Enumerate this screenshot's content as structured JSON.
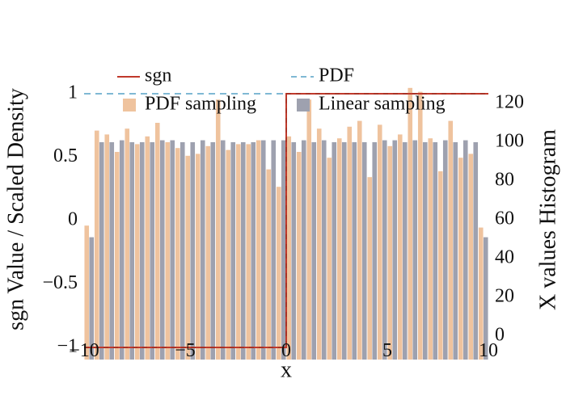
{
  "chart_data": {
    "type": "bar",
    "title": "",
    "xlabel": "x",
    "ylabel_left": "sgn Value / Scaled Density",
    "ylabel_right": "X values Histogram",
    "xlim": [
      -10,
      10
    ],
    "ylim_left": [
      -1.1,
      1.05
    ],
    "ylim_right": [
      0,
      128
    ],
    "xticks": [
      {
        "value": -10,
        "label": "−10"
      },
      {
        "value": -5,
        "label": "−5"
      },
      {
        "value": 0,
        "label": "0"
      },
      {
        "value": 5,
        "label": "5"
      },
      {
        "value": 10,
        "label": "10"
      }
    ],
    "yticks_left": [
      {
        "value": -1,
        "label": "−1"
      },
      {
        "value": -0.5,
        "label": "−0.5"
      },
      {
        "value": 0,
        "label": "0"
      },
      {
        "value": 0.5,
        "label": "0.5"
      },
      {
        "value": 1,
        "label": "1"
      }
    ],
    "yticks_right": [
      {
        "value": 0,
        "label": "0"
      },
      {
        "value": 20,
        "label": "20"
      },
      {
        "value": 40,
        "label": "40"
      },
      {
        "value": 60,
        "label": "60"
      },
      {
        "value": 80,
        "label": "80"
      },
      {
        "value": 100,
        "label": "100"
      },
      {
        "value": 120,
        "label": "120"
      }
    ],
    "grid": false,
    "legend": {
      "placement": "top",
      "entries": [
        {
          "label": "sgn",
          "kind": "line",
          "color": "#c0392b",
          "dash": "solid"
        },
        {
          "label": "PDF",
          "kind": "line",
          "color": "#7fb8d4",
          "dash": "dashed"
        },
        {
          "label": "PDF sampling",
          "kind": "bar",
          "color": "#efc39e"
        },
        {
          "label": "Linear sampling",
          "kind": "bar",
          "color": "#9ea1af"
        }
      ]
    },
    "bin_centers": [
      -9.75,
      -9.25,
      -8.75,
      -8.25,
      -7.75,
      -7.25,
      -6.75,
      -6.25,
      -5.75,
      -5.25,
      -4.75,
      -4.25,
      -3.75,
      -3.25,
      -2.75,
      -2.25,
      -1.75,
      -1.25,
      -0.75,
      -0.25,
      0.25,
      0.75,
      1.25,
      1.75,
      2.25,
      2.75,
      3.25,
      3.75,
      4.25,
      4.75,
      5.25,
      5.75,
      6.25,
      6.75,
      7.25,
      7.75,
      8.25,
      8.75,
      9.25,
      9.75
    ],
    "series": [
      {
        "name": "PDF sampling",
        "axis": "right",
        "color": "#efc39e",
        "values": [
          57,
          106,
          104,
          95,
          107,
          99,
          103,
          110,
          100,
          97,
          93,
          94,
          98,
          122,
          96,
          99,
          99,
          101,
          86,
          77,
          103,
          95,
          122,
          107,
          92,
          102,
          108,
          111,
          82,
          109,
          98,
          104,
          128,
          126,
          102,
          85,
          111,
          92,
          94,
          56
        ]
      },
      {
        "name": "Linear sampling",
        "axis": "right",
        "color": "#9ea1af",
        "values": [
          51,
          100,
          100,
          101,
          100,
          100,
          100,
          101,
          101,
          100,
          100,
          101,
          100,
          101,
          100,
          100,
          100,
          101,
          101,
          101,
          100,
          101,
          100,
          101,
          100,
          100,
          100,
          100,
          100,
          101,
          101,
          100,
          101,
          100,
          100,
          101,
          100,
          101,
          100,
          51
        ]
      },
      {
        "name": "sgn",
        "axis": "left",
        "kind": "step",
        "color": "#c0392b",
        "x": [
          -10,
          0,
          0,
          10
        ],
        "y": [
          -1,
          -1,
          1,
          1
        ]
      },
      {
        "name": "PDF",
        "axis": "left",
        "kind": "line",
        "color": "#7fb8d4",
        "dash": "dashed",
        "x": [
          -10,
          10
        ],
        "y": [
          1,
          1
        ]
      }
    ]
  }
}
